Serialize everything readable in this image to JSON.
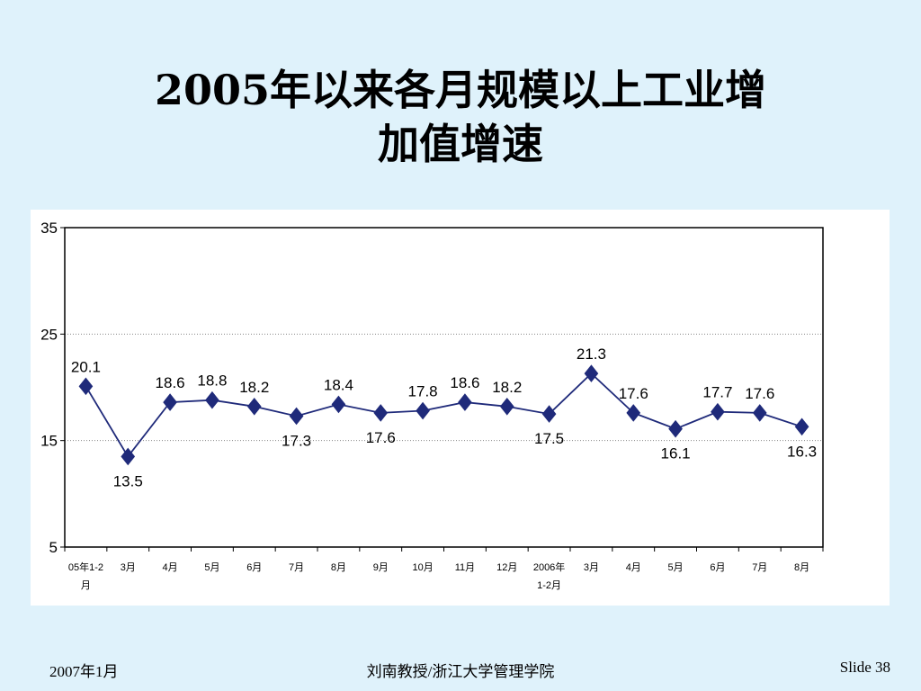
{
  "slide": {
    "title_line1": "2005年以来各月规模以上工业增",
    "title_line2": "加值增速"
  },
  "footer": {
    "date": "2007年1月",
    "author": "刘南教授/浙江大学管理学院",
    "slide_number": "Slide 38"
  },
  "chart_data": {
    "type": "line",
    "title": "",
    "xlabel": "",
    "ylabel": "",
    "ylim": [
      5,
      35
    ],
    "yticks": [
      5,
      15,
      25,
      35
    ],
    "grid": "horizontal dotted",
    "marker": "diamond",
    "color": "#1f2a7a",
    "categories": [
      [
        "05年1-2",
        "月"
      ],
      [
        "3月"
      ],
      [
        "4月"
      ],
      [
        "5月"
      ],
      [
        "6月"
      ],
      [
        "7月"
      ],
      [
        "8月"
      ],
      [
        "9月"
      ],
      [
        "10月"
      ],
      [
        "11月"
      ],
      [
        "12月"
      ],
      [
        "2006年",
        "1-2月"
      ],
      [
        "3月"
      ],
      [
        "4月"
      ],
      [
        "5月"
      ],
      [
        "6月"
      ],
      [
        "7月"
      ],
      [
        "8月"
      ]
    ],
    "values": [
      20.1,
      13.5,
      18.6,
      18.8,
      18.2,
      17.3,
      18.4,
      17.6,
      17.8,
      18.6,
      18.2,
      17.5,
      21.3,
      17.6,
      16.1,
      17.7,
      17.6,
      16.3
    ]
  }
}
